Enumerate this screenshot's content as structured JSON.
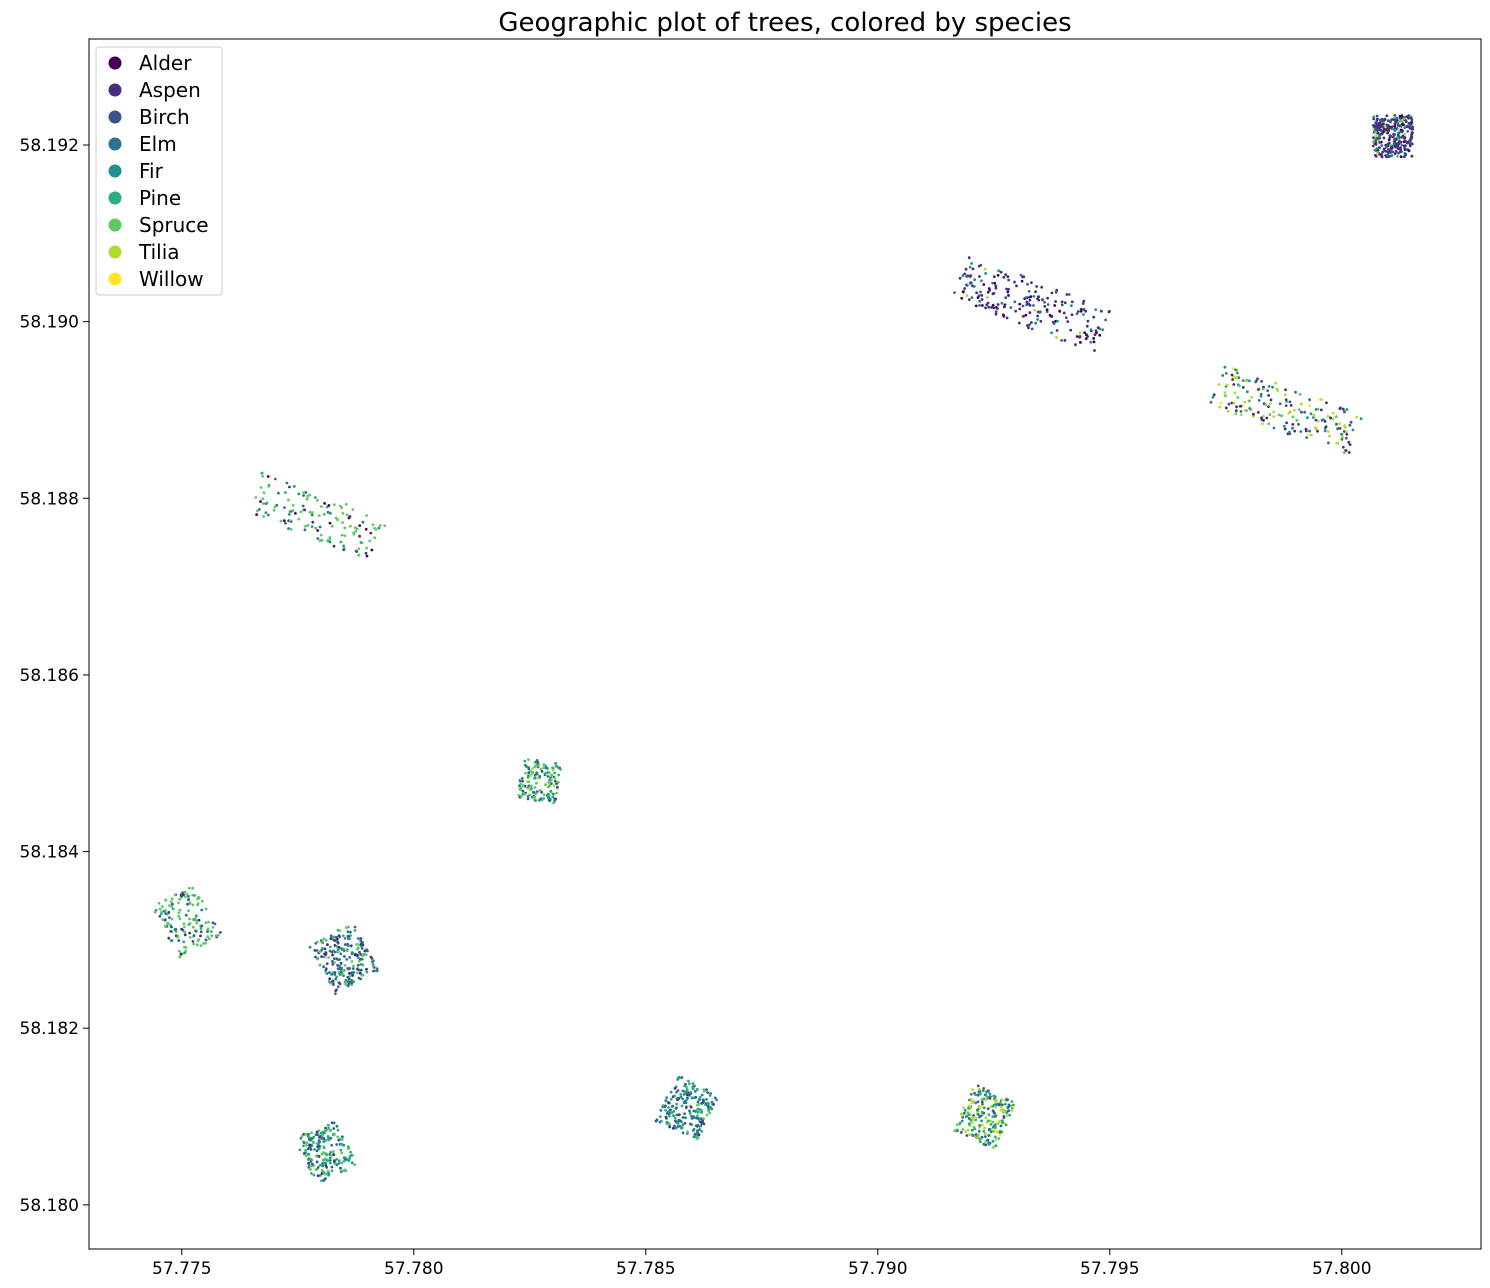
{
  "chart_data": {
    "type": "scatter",
    "title": "Geographic plot of trees, colored by species",
    "xlabel": "",
    "ylabel": "",
    "xlim": [
      57.773,
      57.803
    ],
    "ylim": [
      58.1795,
      58.1932
    ],
    "xticks": [
      57.775,
      57.78,
      57.785,
      57.79,
      57.795,
      57.8
    ],
    "xtick_labels": [
      "57.775",
      "57.780",
      "57.785",
      "57.790",
      "57.795",
      "57.800"
    ],
    "yticks": [
      58.18,
      58.182,
      58.184,
      58.186,
      58.188,
      58.19,
      58.192
    ],
    "ytick_labels": [
      "58.180",
      "58.182",
      "58.184",
      "58.186",
      "58.188",
      "58.190",
      "58.192"
    ],
    "grid": false,
    "legend_position": "top-left",
    "species": [
      {
        "name": "Alder",
        "color": "#440154"
      },
      {
        "name": "Aspen",
        "color": "#472d7b"
      },
      {
        "name": "Birch",
        "color": "#3b528b"
      },
      {
        "name": "Elm",
        "color": "#2c728e"
      },
      {
        "name": "Fir",
        "color": "#21918c"
      },
      {
        "name": "Pine",
        "color": "#28ae80"
      },
      {
        "name": "Spruce",
        "color": "#5ec962"
      },
      {
        "name": "Tilia",
        "color": "#addc30"
      },
      {
        "name": "Willow",
        "color": "#fde725"
      }
    ],
    "plots": [
      {
        "center": [
          57.8011,
          58.1921
        ],
        "length": 0.0009,
        "width": 0.00085,
        "angle_deg": 90,
        "count": 300,
        "mix": {
          "Aspen": 0.55,
          "Birch": 0.12,
          "Elm": 0.08,
          "Alder": 0.08,
          "Fir": 0.07,
          "Tilia": 0.05,
          "Spruce": 0.05
        }
      },
      {
        "center": [
          57.7933,
          58.1902
        ],
        "length": 0.0033,
        "width": 0.001,
        "angle_deg": -22,
        "count": 220,
        "mix": {
          "Aspen": 0.5,
          "Alder": 0.18,
          "Elm": 0.1,
          "Fir": 0.1,
          "Birch": 0.07,
          "Tilia": 0.05
        }
      },
      {
        "center": [
          57.7988,
          58.189
        ],
        "length": 0.0032,
        "width": 0.00095,
        "angle_deg": -20,
        "count": 200,
        "mix": {
          "Tilia": 0.28,
          "Aspen": 0.22,
          "Fir": 0.15,
          "Spruce": 0.12,
          "Elm": 0.1,
          "Birch": 0.08,
          "Willow": 0.05
        }
      },
      {
        "center": [
          57.7779,
          58.1878
        ],
        "length": 0.0029,
        "width": 0.00095,
        "angle_deg": -22,
        "count": 140,
        "mix": {
          "Spruce": 0.55,
          "Elm": 0.15,
          "Aspen": 0.1,
          "Alder": 0.08,
          "Pine": 0.07,
          "Fir": 0.05
        }
      },
      {
        "center": [
          57.7827,
          58.1848
        ],
        "length": 0.0009,
        "width": 0.00085,
        "angle_deg": 80,
        "count": 150,
        "mix": {
          "Spruce": 0.38,
          "Elm": 0.18,
          "Birch": 0.15,
          "Pine": 0.12,
          "Fir": 0.1,
          "Tilia": 0.07
        }
      },
      {
        "center": [
          57.7751,
          58.1832
        ],
        "length": 0.0013,
        "width": 0.00105,
        "angle_deg": -60,
        "count": 150,
        "mix": {
          "Spruce": 0.6,
          "Elm": 0.12,
          "Birch": 0.1,
          "Aspen": 0.08,
          "Pine": 0.1
        }
      },
      {
        "center": [
          57.7785,
          58.1828
        ],
        "length": 0.0012,
        "width": 0.0011,
        "angle_deg": -62,
        "count": 230,
        "mix": {
          "Birch": 0.25,
          "Elm": 0.22,
          "Spruce": 0.2,
          "Aspen": 0.12,
          "Pine": 0.12,
          "Fir": 0.09
        }
      },
      {
        "center": [
          57.7781,
          58.1806
        ],
        "length": 0.0011,
        "width": 0.001,
        "angle_deg": -65,
        "count": 200,
        "mix": {
          "Spruce": 0.35,
          "Pine": 0.25,
          "Elm": 0.15,
          "Fir": 0.12,
          "Birch": 0.08,
          "Aspen": 0.05
        }
      },
      {
        "center": [
          57.7859,
          58.1811
        ],
        "length": 0.0011,
        "width": 0.001,
        "angle_deg": 65,
        "count": 220,
        "mix": {
          "Pine": 0.28,
          "Elm": 0.22,
          "Fir": 0.2,
          "Birch": 0.15,
          "Spruce": 0.1,
          "Aspen": 0.05
        }
      },
      {
        "center": [
          57.7923,
          58.181
        ],
        "length": 0.0011,
        "width": 0.001,
        "angle_deg": 65,
        "count": 230,
        "mix": {
          "Tilia": 0.3,
          "Pine": 0.2,
          "Elm": 0.15,
          "Fir": 0.15,
          "Birch": 0.1,
          "Spruce": 0.06,
          "Willow": 0.04
        }
      }
    ]
  }
}
